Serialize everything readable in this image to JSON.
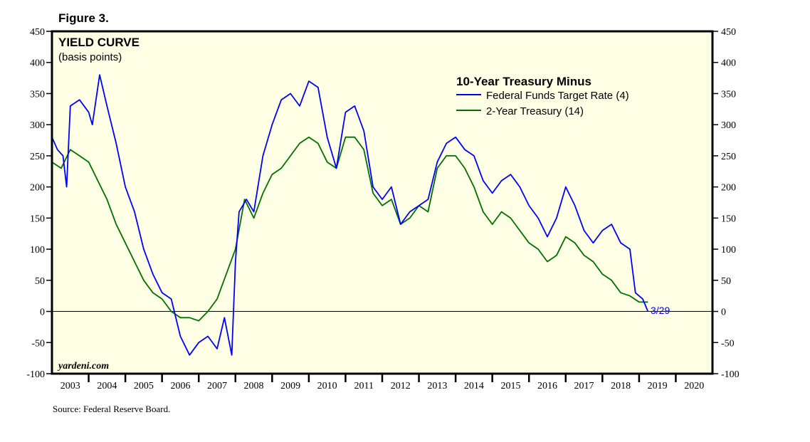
{
  "figure_label": "Figure 3.",
  "source": "Source: Federal Reserve Board.",
  "chart_data": {
    "type": "line",
    "title": "YIELD CURVE",
    "subtitle": "(basis points)",
    "legend_title": "10-Year Treasury Minus",
    "legend_placement": "top-center",
    "watermark": "yardeni.com",
    "end_annotation": "3/29",
    "ylim": [
      -100,
      450
    ],
    "yticks": [
      -100,
      -50,
      0,
      50,
      100,
      150,
      200,
      250,
      300,
      350,
      400,
      450
    ],
    "xlim": [
      2003,
      2021
    ],
    "xtick_labels": [
      "2003",
      "2004",
      "2005",
      "2006",
      "2007",
      "2008",
      "2009",
      "2010",
      "2011",
      "2012",
      "2013",
      "2014",
      "2015",
      "2016",
      "2017",
      "2018",
      "2019",
      "2020"
    ],
    "background": "#ffffe6",
    "zero_line": true,
    "series": [
      {
        "name": "Federal Funds Target Rate (4)",
        "color": "#0000ff",
        "x": [
          2003.0,
          2003.15,
          2003.3,
          2003.4,
          2003.5,
          2003.75,
          2004.0,
          2004.1,
          2004.3,
          2004.5,
          2004.75,
          2005.0,
          2005.25,
          2005.5,
          2005.75,
          2006.0,
          2006.25,
          2006.5,
          2006.75,
          2007.0,
          2007.25,
          2007.5,
          2007.7,
          2007.9,
          2008.0,
          2008.1,
          2008.3,
          2008.5,
          2008.75,
          2009.0,
          2009.25,
          2009.5,
          2009.75,
          2010.0,
          2010.25,
          2010.5,
          2010.75,
          2011.0,
          2011.25,
          2011.5,
          2011.75,
          2012.0,
          2012.25,
          2012.5,
          2012.75,
          2013.0,
          2013.25,
          2013.5,
          2013.75,
          2014.0,
          2014.25,
          2014.5,
          2014.75,
          2015.0,
          2015.25,
          2015.5,
          2015.75,
          2016.0,
          2016.25,
          2016.5,
          2016.75,
          2017.0,
          2017.25,
          2017.5,
          2017.75,
          2018.0,
          2018.25,
          2018.5,
          2018.75,
          2018.9,
          2019.1,
          2019.24
        ],
        "y": [
          280,
          260,
          250,
          200,
          330,
          340,
          320,
          300,
          380,
          330,
          270,
          200,
          160,
          100,
          60,
          30,
          20,
          -40,
          -70,
          -50,
          -40,
          -60,
          -10,
          -70,
          80,
          160,
          180,
          160,
          250,
          300,
          340,
          350,
          330,
          370,
          360,
          280,
          230,
          320,
          330,
          290,
          200,
          180,
          200,
          140,
          160,
          170,
          180,
          240,
          270,
          280,
          260,
          250,
          210,
          190,
          210,
          220,
          200,
          170,
          150,
          120,
          150,
          200,
          170,
          130,
          110,
          130,
          140,
          110,
          100,
          30,
          20,
          0
        ]
      },
      {
        "name": "2-Year Treasury (14)",
        "color": "#007000",
        "x": [
          2003.0,
          2003.25,
          2003.5,
          2003.75,
          2004.0,
          2004.25,
          2004.5,
          2004.75,
          2005.0,
          2005.25,
          2005.5,
          2005.75,
          2006.0,
          2006.25,
          2006.5,
          2006.75,
          2007.0,
          2007.25,
          2007.5,
          2007.75,
          2008.0,
          2008.25,
          2008.5,
          2008.75,
          2009.0,
          2009.25,
          2009.5,
          2009.75,
          2010.0,
          2010.25,
          2010.5,
          2010.75,
          2011.0,
          2011.25,
          2011.5,
          2011.75,
          2012.0,
          2012.25,
          2012.5,
          2012.75,
          2013.0,
          2013.25,
          2013.5,
          2013.75,
          2014.0,
          2014.25,
          2014.5,
          2014.75,
          2015.0,
          2015.25,
          2015.5,
          2015.75,
          2016.0,
          2016.25,
          2016.5,
          2016.75,
          2017.0,
          2017.25,
          2017.5,
          2017.75,
          2018.0,
          2018.25,
          2018.5,
          2018.75,
          2019.0,
          2019.24
        ],
        "y": [
          240,
          230,
          260,
          250,
          240,
          210,
          180,
          140,
          110,
          80,
          50,
          30,
          20,
          0,
          -10,
          -10,
          -15,
          0,
          20,
          60,
          100,
          180,
          150,
          190,
          220,
          230,
          250,
          270,
          280,
          270,
          240,
          230,
          280,
          280,
          260,
          190,
          170,
          180,
          140,
          150,
          170,
          160,
          230,
          250,
          250,
          230,
          200,
          160,
          140,
          160,
          150,
          130,
          110,
          100,
          80,
          90,
          120,
          110,
          90,
          80,
          60,
          50,
          30,
          25,
          15,
          15
        ]
      }
    ]
  }
}
